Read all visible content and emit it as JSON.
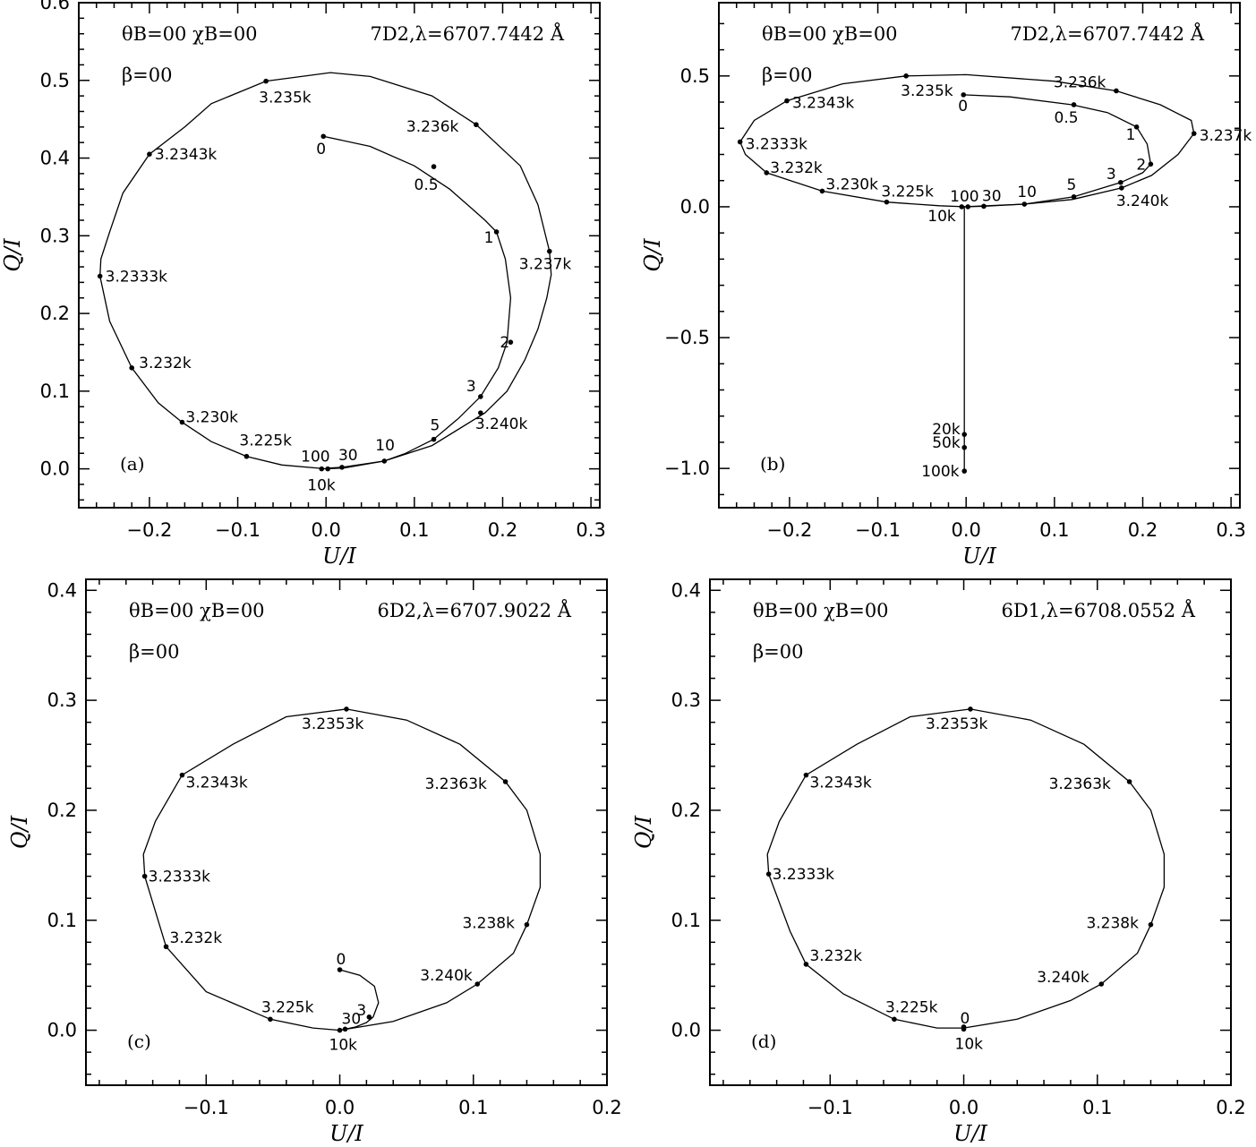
{
  "chart_data": [
    {
      "type": "scatter",
      "panel_label": "(a)",
      "header": {
        "angles": "θB=00 χB=00",
        "beta": "β=00",
        "line": "7D2,λ=6707.7442 Å"
      },
      "xlabel": "U/I",
      "ylabel": "Q/I",
      "xlim": [
        -0.28,
        0.31
      ],
      "ylim": [
        -0.05,
        0.6
      ],
      "xticks": [
        -0.2,
        -0.1,
        0.0,
        0.1,
        0.2,
        0.3
      ],
      "xtick_labels": [
        "−0.2",
        "−0.1",
        "0.0",
        "0.1",
        "0.2",
        "0.3"
      ],
      "yticks": [
        0.0,
        0.1,
        0.2,
        0.3,
        0.4,
        0.5,
        0.6
      ],
      "ytick_labels": [
        "0.0",
        "0.1",
        "0.2",
        "0.3",
        "0.4",
        "0.5",
        "0.6"
      ],
      "series": [
        {
          "x": [
            -0.003,
            0.05,
            0.1,
            0.14,
            0.165,
            0.18,
            0.193,
            0.203,
            0.209,
            0.205,
            0.195,
            0.175,
            0.15,
            0.122,
            0.09,
            0.066,
            0.03,
            0.018,
            0.005,
            0.002,
            0.0
          ],
          "y": [
            0.428,
            0.415,
            0.39,
            0.36,
            0.335,
            0.32,
            0.305,
            0.27,
            0.22,
            0.163,
            0.13,
            0.093,
            0.065,
            0.038,
            0.02,
            0.01,
            0.004,
            0.002,
            0.001,
            0.0005,
            0.0
          ]
        },
        {
          "x": [
            0.0,
            0.02,
            0.066,
            0.12,
            0.18,
            0.205,
            0.225,
            0.24,
            0.25,
            0.255,
            0.253,
            0.24,
            0.22,
            0.17,
            0.12,
            0.05,
            0.005,
            -0.068,
            -0.13,
            -0.16,
            -0.2,
            -0.23,
            -0.245,
            -0.255,
            -0.256,
            -0.245,
            -0.22,
            -0.19,
            -0.163,
            -0.13,
            -0.09,
            -0.05,
            0.0
          ],
          "y": [
            0.0,
            0.001,
            0.01,
            0.03,
            0.072,
            0.1,
            0.14,
            0.18,
            0.22,
            0.25,
            0.28,
            0.34,
            0.39,
            0.443,
            0.48,
            0.505,
            0.51,
            0.499,
            0.47,
            0.44,
            0.405,
            0.355,
            0.305,
            0.27,
            0.248,
            0.19,
            0.13,
            0.085,
            0.06,
            0.035,
            0.016,
            0.005,
            0.0
          ]
        }
      ],
      "points": [
        {
          "label": "0",
          "x": -0.003,
          "y": 0.428
        },
        {
          "label": "0.5",
          "x": 0.122,
          "y": 0.389
        },
        {
          "label": "1",
          "x": 0.193,
          "y": 0.305
        },
        {
          "label": "2",
          "x": 0.209,
          "y": 0.163
        },
        {
          "label": "3",
          "x": 0.175,
          "y": 0.093
        },
        {
          "label": "5",
          "x": 0.122,
          "y": 0.038
        },
        {
          "label": "10",
          "x": 0.066,
          "y": 0.01
        },
        {
          "label": "30",
          "x": 0.018,
          "y": 0.002
        },
        {
          "label": "100",
          "x": 0.002,
          "y": 0.0
        },
        {
          "label": "10k",
          "x": -0.005,
          "y": 0.0
        },
        {
          "label": "3.240k",
          "x": 0.175,
          "y": 0.072
        },
        {
          "label": "3.237k",
          "x": 0.253,
          "y": 0.28
        },
        {
          "label": "3.236k",
          "x": 0.17,
          "y": 0.443
        },
        {
          "label": "3.235k",
          "x": -0.068,
          "y": 0.499
        },
        {
          "label": "3.2343k",
          "x": -0.2,
          "y": 0.405
        },
        {
          "label": "3.2333k",
          "x": -0.256,
          "y": 0.248
        },
        {
          "label": "3.232k",
          "x": -0.22,
          "y": 0.13
        },
        {
          "label": "3.230k",
          "x": -0.163,
          "y": 0.06
        },
        {
          "label": "3.225k",
          "x": -0.09,
          "y": 0.016
        }
      ]
    },
    {
      "type": "scatter",
      "panel_label": "(b)",
      "header": {
        "angles": "θB=00 χB=00",
        "beta": "β=00",
        "line": "7D2,λ=6707.7442 Å"
      },
      "xlabel": "U/I",
      "ylabel": "Q/I",
      "xlim": [
        -0.28,
        0.31
      ],
      "ylim": [
        -1.15,
        0.78
      ],
      "xticks": [
        -0.2,
        -0.1,
        0.0,
        0.1,
        0.2,
        0.3
      ],
      "xtick_labels": [
        "−0.2",
        "−0.1",
        "0.0",
        "0.1",
        "0.2",
        "0.3"
      ],
      "yticks": [
        -1.0,
        -0.5,
        0.0,
        0.5
      ],
      "ytick_labels": [
        "−1.0",
        "−0.5",
        "0.0",
        "0.5"
      ],
      "series": [
        {
          "x": [
            -0.003,
            0.05,
            0.12,
            0.16,
            0.193,
            0.205,
            0.209,
            0.2,
            0.175,
            0.122,
            0.066,
            0.02,
            0.002,
            -0.002,
            -0.002,
            -0.002,
            -0.002
          ],
          "y": [
            0.428,
            0.42,
            0.39,
            0.36,
            0.305,
            0.24,
            0.163,
            0.13,
            0.093,
            0.038,
            0.01,
            0.002,
            0.0,
            0.0,
            -0.87,
            -0.92,
            -1.01
          ]
        },
        {
          "x": [
            -0.002,
            0.066,
            0.12,
            0.176,
            0.21,
            0.24,
            0.258,
            0.255,
            0.22,
            0.17,
            0.1,
            0.0,
            -0.068,
            -0.14,
            -0.203,
            -0.24,
            -0.256,
            -0.25,
            -0.226,
            -0.163,
            -0.09,
            -0.03,
            -0.002
          ],
          "y": [
            0.0,
            0.01,
            0.028,
            0.072,
            0.12,
            0.2,
            0.28,
            0.33,
            0.39,
            0.443,
            0.48,
            0.505,
            0.5,
            0.47,
            0.405,
            0.33,
            0.248,
            0.2,
            0.13,
            0.06,
            0.018,
            0.004,
            0.0
          ]
        }
      ],
      "points": [
        {
          "label": "0",
          "x": -0.003,
          "y": 0.428
        },
        {
          "label": "0.5",
          "x": 0.122,
          "y": 0.39
        },
        {
          "label": "1",
          "x": 0.193,
          "y": 0.305
        },
        {
          "label": "2",
          "x": 0.209,
          "y": 0.163
        },
        {
          "label": "3",
          "x": 0.175,
          "y": 0.093
        },
        {
          "label": "5",
          "x": 0.122,
          "y": 0.038
        },
        {
          "label": "10",
          "x": 0.066,
          "y": 0.01
        },
        {
          "label": "30",
          "x": 0.02,
          "y": 0.002
        },
        {
          "label": "100",
          "x": 0.002,
          "y": 0.0
        },
        {
          "label": "10k",
          "x": -0.005,
          "y": 0.0
        },
        {
          "label": "20k",
          "x": -0.002,
          "y": -0.87
        },
        {
          "label": "50k",
          "x": -0.002,
          "y": -0.92
        },
        {
          "label": "100k",
          "x": -0.002,
          "y": -1.01
        },
        {
          "label": "3.240k",
          "x": 0.176,
          "y": 0.072
        },
        {
          "label": "3.237k",
          "x": 0.258,
          "y": 0.28
        },
        {
          "label": "3.236k",
          "x": 0.17,
          "y": 0.443
        },
        {
          "label": "3.235k",
          "x": -0.068,
          "y": 0.5
        },
        {
          "label": "3.2343k",
          "x": -0.203,
          "y": 0.405
        },
        {
          "label": "3.2333k",
          "x": -0.256,
          "y": 0.248
        },
        {
          "label": "3.232k",
          "x": -0.226,
          "y": 0.13
        },
        {
          "label": "3.230k",
          "x": -0.163,
          "y": 0.06
        },
        {
          "label": "3.225k",
          "x": -0.09,
          "y": 0.018
        }
      ]
    },
    {
      "type": "scatter",
      "panel_label": "(c)",
      "header": {
        "angles": "θB=00 χB=00",
        "beta": "β=00",
        "line": "6D2,λ=6707.9022 Å"
      },
      "xlabel": "U/I",
      "ylabel": "Q/I",
      "xlim": [
        -0.19,
        0.2
      ],
      "ylim": [
        -0.05,
        0.41
      ],
      "xticks": [
        -0.1,
        0.0,
        0.1,
        0.2
      ],
      "xtick_labels": [
        "−0.1",
        "0.0",
        "0.1",
        "0.2"
      ],
      "yticks": [
        0.0,
        0.1,
        0.2,
        0.3,
        0.4
      ],
      "ytick_labels": [
        "0.0",
        "0.1",
        "0.2",
        "0.3",
        "0.4"
      ],
      "series": [
        {
          "x": [
            0.0,
            0.015,
            0.026,
            0.029,
            0.025,
            0.02,
            0.012,
            0.004,
            0.0
          ],
          "y": [
            0.055,
            0.05,
            0.04,
            0.025,
            0.012,
            0.007,
            0.003,
            0.001,
            0.0
          ]
        },
        {
          "x": [
            0.0,
            0.04,
            0.08,
            0.103,
            0.13,
            0.14,
            0.15,
            0.15,
            0.14,
            0.124,
            0.09,
            0.05,
            0.005,
            -0.04,
            -0.08,
            -0.118,
            -0.138,
            -0.147,
            -0.146,
            -0.13,
            -0.1,
            -0.052,
            -0.02,
            0.0
          ],
          "y": [
            0.0,
            0.008,
            0.025,
            0.042,
            0.07,
            0.096,
            0.13,
            0.16,
            0.2,
            0.226,
            0.26,
            0.282,
            0.292,
            0.285,
            0.26,
            0.232,
            0.19,
            0.16,
            0.14,
            0.076,
            0.035,
            0.01,
            0.002,
            0.0
          ]
        }
      ],
      "points": [
        {
          "label": "0",
          "x": 0.0,
          "y": 0.055
        },
        {
          "label": "3",
          "x": 0.022,
          "y": 0.012
        },
        {
          "label": "30",
          "x": 0.004,
          "y": 0.001
        },
        {
          "label": "10k",
          "x": 0.0,
          "y": 0.0
        },
        {
          "label": "3.240k",
          "x": 0.103,
          "y": 0.042
        },
        {
          "label": "3.238k",
          "x": 0.14,
          "y": 0.096
        },
        {
          "label": "3.2363k",
          "x": 0.124,
          "y": 0.226
        },
        {
          "label": "3.2353k",
          "x": 0.005,
          "y": 0.292
        },
        {
          "label": "3.2343k",
          "x": -0.118,
          "y": 0.232
        },
        {
          "label": "3.2333k",
          "x": -0.146,
          "y": 0.14
        },
        {
          "label": "3.232k",
          "x": -0.13,
          "y": 0.076
        },
        {
          "label": "3.225k",
          "x": -0.052,
          "y": 0.01
        }
      ]
    },
    {
      "type": "scatter",
      "panel_label": "(d)",
      "header": {
        "angles": "θB=00 χB=00",
        "beta": "β=00",
        "line": "6D1,λ=6708.0552 Å"
      },
      "xlabel": "U/I",
      "ylabel": "Q/I",
      "xlim": [
        -0.19,
        0.2
      ],
      "ylim": [
        -0.05,
        0.41
      ],
      "xticks": [
        -0.1,
        0.0,
        0.1,
        0.2
      ],
      "xtick_labels": [
        "−0.1",
        "0.0",
        "0.1",
        "0.2"
      ],
      "yticks": [
        0.0,
        0.1,
        0.2,
        0.3,
        0.4
      ],
      "ytick_labels": [
        "0.0",
        "0.1",
        "0.2",
        "0.3",
        "0.4"
      ],
      "series": [
        {
          "x": [
            0.0,
            0.04,
            0.08,
            0.103,
            0.13,
            0.14,
            0.15,
            0.15,
            0.14,
            0.124,
            0.09,
            0.05,
            0.005,
            -0.04,
            -0.08,
            -0.118,
            -0.138,
            -0.147,
            -0.146,
            -0.13,
            -0.118,
            -0.09,
            -0.052,
            -0.02,
            0.0
          ],
          "y": [
            0.002,
            0.01,
            0.027,
            0.042,
            0.07,
            0.096,
            0.13,
            0.16,
            0.2,
            0.226,
            0.26,
            0.282,
            0.292,
            0.285,
            0.26,
            0.232,
            0.19,
            0.16,
            0.142,
            0.09,
            0.06,
            0.033,
            0.01,
            0.002,
            0.002
          ]
        }
      ],
      "points": [
        {
          "label": "0",
          "x": 0.0,
          "y": 0.003
        },
        {
          "label": "10k",
          "x": 0.0,
          "y": 0.001
        },
        {
          "label": "3.240k",
          "x": 0.103,
          "y": 0.042
        },
        {
          "label": "3.238k",
          "x": 0.14,
          "y": 0.096
        },
        {
          "label": "3.2363k",
          "x": 0.124,
          "y": 0.226
        },
        {
          "label": "3.2353k",
          "x": 0.005,
          "y": 0.292
        },
        {
          "label": "3.2343k",
          "x": -0.118,
          "y": 0.232
        },
        {
          "label": "3.2333k",
          "x": -0.146,
          "y": 0.142
        },
        {
          "label": "3.232k",
          "x": -0.118,
          "y": 0.06
        },
        {
          "label": "3.225k",
          "x": -0.052,
          "y": 0.01
        }
      ]
    }
  ]
}
